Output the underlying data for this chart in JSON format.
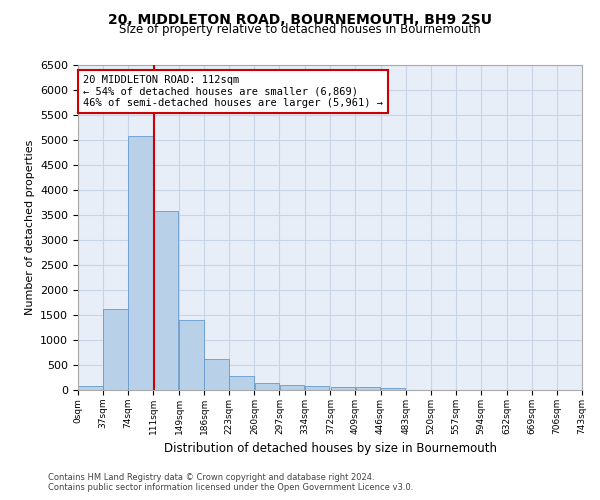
{
  "title": "20, MIDDLETON ROAD, BOURNEMOUTH, BH9 2SU",
  "subtitle": "Size of property relative to detached houses in Bournemouth",
  "xlabel": "Distribution of detached houses by size in Bournemouth",
  "ylabel": "Number of detached properties",
  "footer_line1": "Contains HM Land Registry data © Crown copyright and database right 2024.",
  "footer_line2": "Contains public sector information licensed under the Open Government Licence v3.0.",
  "bin_edges": [
    0,
    37,
    74,
    111,
    149,
    186,
    223,
    260,
    297,
    334,
    372,
    409,
    446,
    483,
    520,
    557,
    594,
    632,
    669,
    706,
    743
  ],
  "bar_heights": [
    75,
    1630,
    5080,
    3580,
    1410,
    620,
    290,
    145,
    110,
    80,
    70,
    60,
    50,
    0,
    0,
    0,
    0,
    0,
    0,
    0
  ],
  "bar_color": "#b8d0e8",
  "bar_edge_color": "#6699cc",
  "property_size": 112,
  "vline_color": "#cc0000",
  "annotation_text": "20 MIDDLETON ROAD: 112sqm\n← 54% of detached houses are smaller (6,869)\n46% of semi-detached houses are larger (5,961) →",
  "annotation_box_edgecolor": "#cc0000",
  "ylim": [
    0,
    6500
  ],
  "yticks": [
    0,
    500,
    1000,
    1500,
    2000,
    2500,
    3000,
    3500,
    4000,
    4500,
    5000,
    5500,
    6000,
    6500
  ],
  "grid_color": "#c8d4e8",
  "background_color": "#e8eef8",
  "tick_labels": [
    "0sqm",
    "37sqm",
    "74sqm",
    "111sqm",
    "149sqm",
    "186sqm",
    "223sqm",
    "260sqm",
    "297sqm",
    "334sqm",
    "372sqm",
    "409sqm",
    "446sqm",
    "483sqm",
    "520sqm",
    "557sqm",
    "594sqm",
    "632sqm",
    "669sqm",
    "706sqm",
    "743sqm"
  ]
}
